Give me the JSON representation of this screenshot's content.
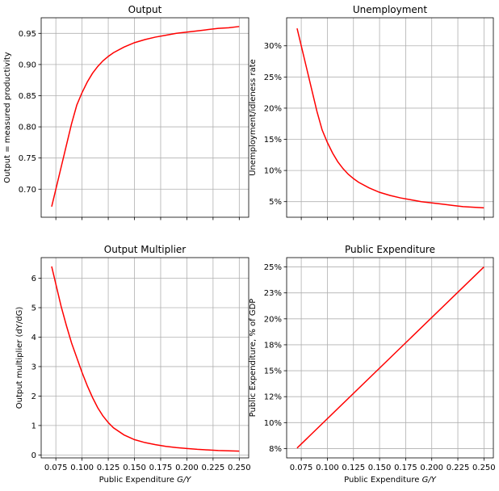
{
  "figure": {
    "xlabel_text": "Public Expenditure ",
    "xlabel_italic": "G/Y",
    "line_color": "#ff0000"
  },
  "chart_data": [
    {
      "type": "line",
      "title": "Output",
      "xlabel": "",
      "ylabel": "Output = measured productivity",
      "xlim": [
        0.061,
        0.259
      ],
      "ylim": [
        0.655,
        0.975
      ],
      "xticks": [
        0.075,
        0.1,
        0.125,
        0.15,
        0.175,
        0.2,
        0.225,
        0.25
      ],
      "xtick_labels": [],
      "yticks": [
        0.7,
        0.75,
        0.8,
        0.85,
        0.9,
        0.95
      ],
      "ytick_labels": [
        "0.70",
        "0.75",
        "0.80",
        "0.85",
        "0.90",
        "0.95"
      ],
      "series": [
        {
          "x": [
            0.071,
            0.075,
            0.08,
            0.085,
            0.09,
            0.095,
            0.1,
            0.105,
            0.11,
            0.115,
            0.12,
            0.125,
            0.13,
            0.14,
            0.15,
            0.16,
            0.17,
            0.18,
            0.19,
            0.2,
            0.21,
            0.22,
            0.23,
            0.24,
            0.25
          ],
          "y": [
            0.672,
            0.7,
            0.735,
            0.77,
            0.805,
            0.835,
            0.855,
            0.872,
            0.886,
            0.897,
            0.906,
            0.913,
            0.919,
            0.928,
            0.935,
            0.94,
            0.944,
            0.947,
            0.95,
            0.952,
            0.954,
            0.956,
            0.958,
            0.959,
            0.961
          ]
        }
      ]
    },
    {
      "type": "line",
      "title": "Unemployment",
      "xlabel": "",
      "ylabel": "Unemployment/idleness rate",
      "xlim": [
        0.061,
        0.259
      ],
      "ylim": [
        0.025,
        0.345
      ],
      "xticks": [
        0.075,
        0.1,
        0.125,
        0.15,
        0.175,
        0.2,
        0.225,
        0.25
      ],
      "xtick_labels": [],
      "yticks": [
        0.05,
        0.1,
        0.15,
        0.2,
        0.25,
        0.3
      ],
      "ytick_labels": [
        "5%",
        "10%",
        "15%",
        "20%",
        "25%",
        "30%"
      ],
      "series": [
        {
          "x": [
            0.071,
            0.075,
            0.08,
            0.085,
            0.09,
            0.095,
            0.1,
            0.105,
            0.11,
            0.115,
            0.12,
            0.125,
            0.13,
            0.14,
            0.15,
            0.16,
            0.17,
            0.18,
            0.19,
            0.2,
            0.21,
            0.22,
            0.23,
            0.24,
            0.25
          ],
          "y": [
            0.328,
            0.3,
            0.265,
            0.23,
            0.195,
            0.165,
            0.145,
            0.128,
            0.114,
            0.103,
            0.094,
            0.087,
            0.081,
            0.072,
            0.065,
            0.06,
            0.056,
            0.053,
            0.05,
            0.048,
            0.046,
            0.044,
            0.042,
            0.041,
            0.04
          ]
        }
      ]
    },
    {
      "type": "line",
      "title": "Output Multiplier",
      "xlabel": "Public Expenditure G/Y",
      "ylabel": "Output multiplier (dY/dG)",
      "xlim": [
        0.061,
        0.259
      ],
      "ylim": [
        -0.1,
        6.7
      ],
      "xticks": [
        0.075,
        0.1,
        0.125,
        0.15,
        0.175,
        0.2,
        0.225,
        0.25
      ],
      "xtick_labels": [
        "0.075",
        "0.100",
        "0.125",
        "0.150",
        "0.175",
        "0.200",
        "0.225",
        "0.250"
      ],
      "yticks": [
        0,
        1,
        2,
        3,
        4,
        5,
        6
      ],
      "ytick_labels": [
        "0",
        "1",
        "2",
        "3",
        "4",
        "5",
        "6"
      ],
      "series": [
        {
          "x": [
            0.071,
            0.075,
            0.08,
            0.085,
            0.09,
            0.095,
            0.1,
            0.105,
            0.11,
            0.115,
            0.12,
            0.125,
            0.13,
            0.14,
            0.15,
            0.16,
            0.17,
            0.18,
            0.19,
            0.2,
            0.21,
            0.22,
            0.23,
            0.24,
            0.25
          ],
          "y": [
            6.4,
            5.8,
            5.05,
            4.4,
            3.8,
            3.3,
            2.8,
            2.35,
            1.95,
            1.6,
            1.32,
            1.1,
            0.92,
            0.68,
            0.52,
            0.42,
            0.35,
            0.29,
            0.25,
            0.22,
            0.19,
            0.17,
            0.15,
            0.14,
            0.13
          ]
        }
      ]
    },
    {
      "type": "line",
      "title": "Public Expenditure",
      "xlabel": "Public Expenditure G/Y",
      "ylabel": "Public Expenditure, % of GDP",
      "xlim": [
        0.061,
        0.259
      ],
      "ylim": [
        0.066,
        0.259
      ],
      "xticks": [
        0.075,
        0.1,
        0.125,
        0.15,
        0.175,
        0.2,
        0.225,
        0.25
      ],
      "xtick_labels": [
        "0.075",
        "0.100",
        "0.125",
        "0.150",
        "0.175",
        "0.200",
        "0.225",
        "0.250"
      ],
      "yticks": [
        0.075,
        0.1,
        0.125,
        0.15,
        0.175,
        0.2,
        0.225,
        0.25
      ],
      "ytick_labels": [
        "8%",
        "10%",
        "12%",
        "15%",
        "18%",
        "20%",
        "23%",
        "25%"
      ],
      "series": [
        {
          "x": [
            0.071,
            0.25
          ],
          "y": [
            0.0755,
            0.25
          ]
        }
      ]
    }
  ]
}
